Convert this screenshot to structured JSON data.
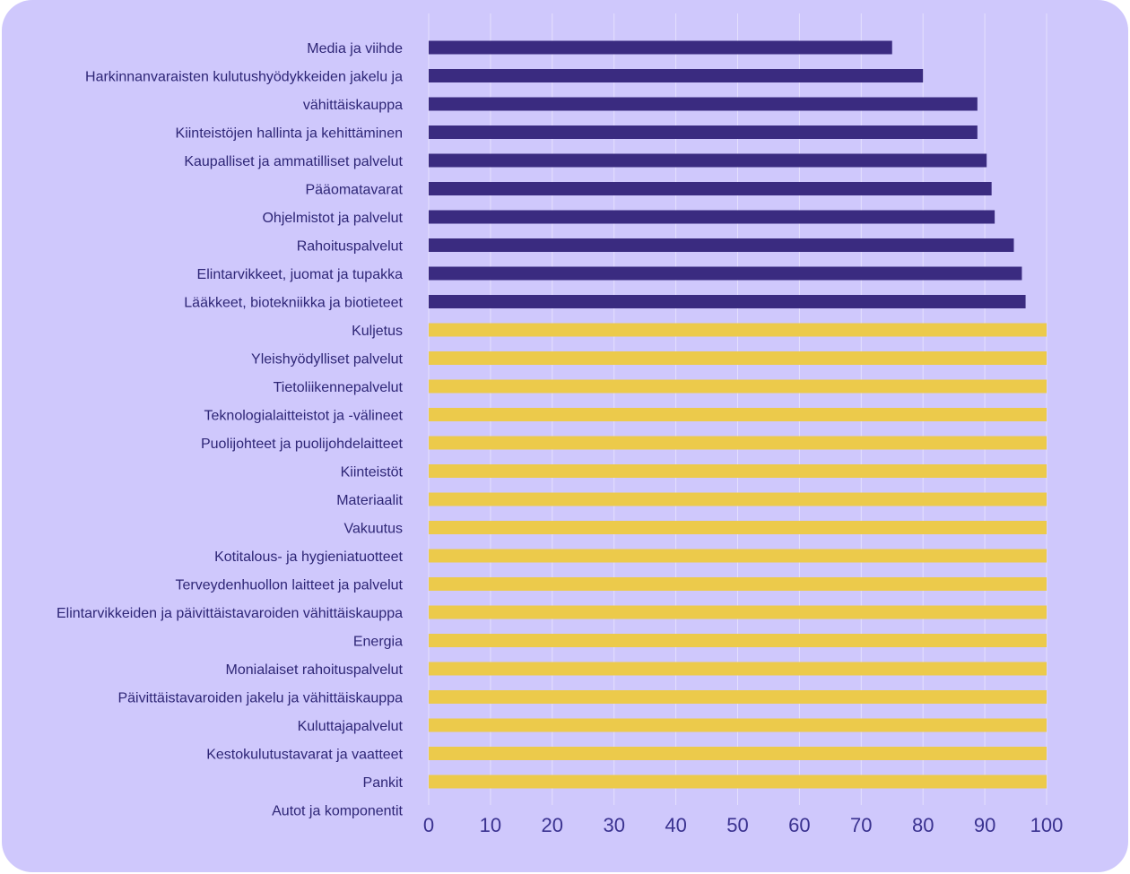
{
  "chart_data": {
    "type": "bar",
    "orientation": "horizontal",
    "categories": [
      "Media ja viihde",
      "Harkinnanvaraisten kulutushyödykkeiden jakelu ja",
      "vähittäiskauppa",
      "Kiinteistöjen hallinta ja kehittäminen",
      "Kaupalliset ja ammatilliset palvelut",
      "Pääomatavarat",
      "Ohjelmistot ja palvelut",
      "Rahoituspalvelut",
      "Elintarvikkeet, juomat ja tupakka",
      "Lääkkeet, biotekniikka ja biotieteet",
      "Kuljetus",
      "Yleishyödylliset palvelut",
      "Tietoliikennepalvelut",
      "Teknologialaitteistot ja -välineet",
      "Puolijohteet ja puolijohdelaitteet",
      "Kiinteistöt",
      "Materiaalit",
      "Vakuutus",
      "Kotitalous- ja hygieniatuotteet",
      "Terveydenhuollon laitteet ja palvelut",
      "Elintarvikkeiden ja päivittäistavaroiden vähittäiskauppa",
      "Energia",
      "Monialaiset rahoituspalvelut",
      "Päivittäistavaroiden jakelu ja vähittäiskauppa",
      "Kuluttajapalvelut",
      "Kestokulutustavarat ja vaatteet",
      "Pankit",
      "Autot ja komponentit"
    ],
    "values": [
      75,
      80,
      88.8,
      88.8,
      90.3,
      91.1,
      91.6,
      94.7,
      96,
      96.6,
      100,
      100,
      100,
      100,
      100,
      100,
      100,
      100,
      100,
      100,
      100,
      100,
      100,
      100,
      100,
      100,
      100,
      null
    ],
    "bar_colors": [
      "#3a2b80",
      "#3a2b80",
      "#3a2b80",
      "#3a2b80",
      "#3a2b80",
      "#3a2b80",
      "#3a2b80",
      "#3a2b80",
      "#3a2b80",
      "#3a2b80",
      "#ecca4b",
      "#ecca4b",
      "#ecca4b",
      "#ecca4b",
      "#ecca4b",
      "#ecca4b",
      "#ecca4b",
      "#ecca4b",
      "#ecca4b",
      "#ecca4b",
      "#ecca4b",
      "#ecca4b",
      "#ecca4b",
      "#ecca4b",
      "#ecca4b",
      "#ecca4b",
      "#ecca4b",
      "#ecca4b"
    ],
    "xticks": [
      "0",
      "10",
      "20",
      "30",
      "40",
      "50",
      "60",
      "70",
      "80",
      "90",
      "100"
    ],
    "xlim": [
      0,
      100
    ],
    "grid": "vertical",
    "title": "",
    "xlabel": "",
    "ylabel": ""
  },
  "colors": {
    "background": "#cfc8fc",
    "bar_dark": "#3a2b80",
    "bar_yellow": "#ecca4b",
    "grid": "#e4e0fd",
    "text": "#2e2676"
  }
}
